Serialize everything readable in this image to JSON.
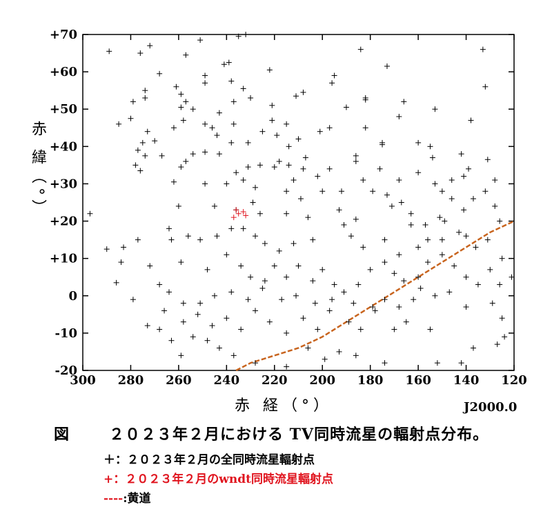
{
  "chart_data": {
    "type": "scatter",
    "xlabel": "赤 経（°）",
    "ylabel": "赤 緯（°）",
    "epoch": "J2000.0",
    "xlim": [
      300,
      120
    ],
    "ylim": [
      -20,
      70
    ],
    "x_ticks": [
      "300",
      "280",
      "260",
      "240",
      "220",
      "200",
      "180",
      "160",
      "140",
      "120"
    ],
    "y_ticks": [
      "+70",
      "+60",
      "+50",
      "+40",
      "+30",
      "+20",
      "+10",
      "0",
      "-10",
      "-20"
    ],
    "colors": {
      "all": "#000000",
      "wndt": "#e0141e",
      "ecliptic": "#c8641e"
    },
    "series": [
      {
        "name": "全同時流星輻射点",
        "marker": "+",
        "color": "#000000",
        "points": [
          [
            289,
            65.5
          ],
          [
            276,
            65
          ],
          [
            272,
            67
          ],
          [
            257,
            64.5
          ],
          [
            251,
            68.5
          ],
          [
            235,
            69.5
          ],
          [
            232,
            70
          ],
          [
            241,
            62
          ],
          [
            239,
            62.5
          ],
          [
            268,
            59.5
          ],
          [
            249,
            59
          ],
          [
            249,
            57
          ],
          [
            238,
            57.5
          ],
          [
            222,
            60.5
          ],
          [
            195,
            59
          ],
          [
            196,
            57
          ],
          [
            208,
            54.5
          ],
          [
            285,
            46
          ],
          [
            280,
            47.5
          ],
          [
            279,
            52
          ],
          [
            274,
            55
          ],
          [
            274,
            53
          ],
          [
            261,
            56
          ],
          [
            259,
            54
          ],
          [
            257,
            52
          ],
          [
            259,
            50.5
          ],
          [
            254,
            50
          ],
          [
            233,
            55.5
          ],
          [
            230,
            53
          ],
          [
            237,
            52
          ],
          [
            221,
            51
          ],
          [
            211,
            53.5
          ],
          [
            190,
            50.5
          ],
          [
            173,
            61.5
          ],
          [
            184,
            66
          ],
          [
            133,
            66
          ],
          [
            132,
            56
          ],
          [
            153,
            50
          ],
          [
            166,
            52
          ],
          [
            182,
            53
          ],
          [
            182,
            52.5
          ],
          [
            138,
            47
          ],
          [
            168,
            48
          ],
          [
            182,
            45
          ],
          [
            197,
            45
          ],
          [
            201,
            44
          ],
          [
            210,
            42
          ],
          [
            215,
            46
          ],
          [
            237,
            46
          ],
          [
            243,
            49
          ],
          [
            246,
            45
          ],
          [
            249,
            46
          ],
          [
            258,
            47
          ],
          [
            273,
            44
          ],
          [
            275,
            41
          ],
          [
            277,
            39
          ],
          [
            270,
            41.5
          ],
          [
            274,
            37.5
          ],
          [
            276,
            33.5
          ],
          [
            267,
            37.5
          ],
          [
            262,
            45
          ],
          [
            244,
            43
          ],
          [
            238,
            41
          ],
          [
            231,
            41
          ],
          [
            225,
            44
          ],
          [
            221,
            47
          ],
          [
            219,
            43
          ],
          [
            214,
            40
          ],
          [
            207,
            37
          ],
          [
            186,
            37.5
          ],
          [
            175,
            40.5
          ],
          [
            155,
            40
          ],
          [
            175,
            41
          ],
          [
            160,
            41
          ],
          [
            154,
            37
          ],
          [
            142,
            38
          ],
          [
            131,
            36.5
          ],
          [
            139,
            34
          ],
          [
            141,
            32
          ],
          [
            146,
            31
          ],
          [
            153,
            30
          ],
          [
            160,
            33
          ],
          [
            168,
            31
          ],
          [
            176,
            34
          ],
          [
            186,
            36
          ],
          [
            197,
            34
          ],
          [
            202,
            32
          ],
          [
            218,
            36
          ],
          [
            226,
            35
          ],
          [
            231,
            34.5
          ],
          [
            233,
            31
          ],
          [
            243,
            38
          ],
          [
            249,
            38.5
          ],
          [
            254,
            38
          ],
          [
            257,
            36
          ],
          [
            259,
            34.5
          ],
          [
            262,
            30.5
          ],
          [
            249,
            30
          ],
          [
            240,
            30
          ],
          [
            228,
            29
          ],
          [
            215,
            28
          ],
          [
            212,
            31
          ],
          [
            209,
            26
          ],
          [
            200,
            28
          ],
          [
            192,
            28
          ],
          [
            183,
            31
          ],
          [
            179,
            28
          ],
          [
            173,
            27
          ],
          [
            167,
            25
          ],
          [
            163,
            22
          ],
          [
            151,
            21
          ],
          [
            146,
            26
          ],
          [
            141,
            23
          ],
          [
            137,
            26
          ],
          [
            132,
            28
          ],
          [
            128,
            31
          ],
          [
            128,
            24
          ],
          [
            150,
            28
          ],
          [
            260,
            24
          ],
          [
            245,
            24
          ],
          [
            236,
            23
          ],
          [
            229,
            25
          ],
          [
            226,
            22
          ],
          [
            215,
            22
          ],
          [
            206,
            21
          ],
          [
            193,
            23
          ],
          [
            186,
            20.5
          ],
          [
            171,
            24
          ],
          [
            163,
            19
          ],
          [
            157,
            19
          ],
          [
            149,
            20
          ],
          [
            143,
            17
          ],
          [
            140,
            16
          ],
          [
            136,
            13
          ],
          [
            131,
            15
          ],
          [
            126,
            20
          ],
          [
            125,
            10
          ],
          [
            121,
            5
          ],
          [
            126,
            3
          ],
          [
            150,
            15
          ],
          [
            156,
            15
          ],
          [
            160,
            13
          ],
          [
            168,
            11
          ],
          [
            174,
            15
          ],
          [
            183,
            13
          ],
          [
            188,
            16
          ],
          [
            191,
            19
          ],
          [
            204,
            15
          ],
          [
            212,
            14
          ],
          [
            218,
            12
          ],
          [
            224,
            14
          ],
          [
            228,
            16
          ],
          [
            233,
            18
          ],
          [
            238,
            18
          ],
          [
            244,
            16
          ],
          [
            251,
            15
          ],
          [
            256,
            16
          ],
          [
            263,
            15
          ],
          [
            264,
            18
          ],
          [
            277,
            15
          ],
          [
            283,
            13
          ],
          [
            284,
            9
          ],
          [
            290,
            12.5
          ],
          [
            272,
            8
          ],
          [
            259,
            9
          ],
          [
            248,
            7
          ],
          [
            240,
            11
          ],
          [
            234,
            8
          ],
          [
            230,
            5
          ],
          [
            224,
            4
          ],
          [
            220,
            8
          ],
          [
            215,
            5
          ],
          [
            210,
            8
          ],
          [
            204,
            4
          ],
          [
            200,
            7
          ],
          [
            195,
            3
          ],
          [
            191,
            1
          ],
          [
            185,
            3
          ],
          [
            180,
            7
          ],
          [
            174,
            9
          ],
          [
            170,
            6
          ],
          [
            166,
            4
          ],
          [
            160,
            5
          ],
          [
            156,
            9
          ],
          [
            150,
            11
          ],
          [
            145,
            8
          ],
          [
            140,
            5
          ],
          [
            135,
            3
          ],
          [
            130,
            7
          ],
          [
            147,
            1
          ],
          [
            153,
            0
          ],
          [
            159,
            2
          ],
          [
            162,
            -1
          ],
          [
            168,
            -3
          ],
          [
            174,
            -1
          ],
          [
            179,
            -3
          ],
          [
            187,
            -2
          ],
          [
            196,
            -1
          ],
          [
            203,
            -2
          ],
          [
            211,
            0
          ],
          [
            217,
            -1
          ],
          [
            225,
            2
          ],
          [
            231,
            -1
          ],
          [
            238,
            1
          ],
          [
            245,
            0
          ],
          [
            251,
            -2
          ],
          [
            258,
            -2
          ],
          [
            264,
            1
          ],
          [
            268,
            3
          ],
          [
            266,
            -4
          ],
          [
            258,
            -7
          ],
          [
            252,
            -5
          ],
          [
            246,
            -8
          ],
          [
            240,
            -6
          ],
          [
            234,
            -9
          ],
          [
            228,
            -4
          ],
          [
            222,
            -7
          ],
          [
            215,
            -10
          ],
          [
            208,
            -6
          ],
          [
            202,
            -9
          ],
          [
            197,
            -4
          ],
          [
            189,
            -7
          ],
          [
            184,
            -9
          ],
          [
            178,
            -4
          ],
          [
            170,
            -9
          ],
          [
            165,
            -7
          ],
          [
            155,
            -9
          ],
          [
            140,
            -3
          ],
          [
            129,
            -2
          ],
          [
            125,
            -6
          ],
          [
            124,
            -11
          ],
          [
            127,
            -13
          ],
          [
            137,
            -14
          ],
          [
            142,
            -18
          ],
          [
            152,
            -18
          ],
          [
            174,
            -18
          ],
          [
            186,
            -16
          ],
          [
            193,
            -15
          ],
          [
            199,
            -17
          ],
          [
            206,
            -14
          ],
          [
            215,
            -19
          ],
          [
            228,
            -18
          ],
          [
            237,
            -16
          ],
          [
            243,
            -14
          ],
          [
            248,
            -12
          ],
          [
            254,
            -11
          ],
          [
            259,
            -16
          ],
          [
            263,
            -12
          ],
          [
            268,
            -9
          ],
          [
            273,
            -8
          ],
          [
            279,
            -1
          ],
          [
            297,
            22
          ],
          [
            278,
            35
          ],
          [
            286,
            3.5
          ],
          [
            220,
            34.5
          ],
          [
            236,
            33
          ],
          [
            214,
            35
          ],
          [
            208,
            34
          ]
        ]
      },
      {
        "name": "wndt同時流星輻射点",
        "marker": "+",
        "color": "#e0141e",
        "points": [
          [
            235,
            22
          ],
          [
            236,
            23
          ],
          [
            233,
            22.5
          ],
          [
            232,
            21.5
          ],
          [
            237,
            21
          ]
        ]
      },
      {
        "name": "黄道",
        "style": "dashed",
        "color": "#c8641e",
        "points": [
          [
            236,
            -20
          ],
          [
            230,
            -18
          ],
          [
            220,
            -16
          ],
          [
            210,
            -14
          ],
          [
            200,
            -11
          ],
          [
            190,
            -7
          ],
          [
            180,
            -3
          ],
          [
            170,
            1
          ],
          [
            160,
            5
          ],
          [
            150,
            9
          ],
          [
            140,
            13
          ],
          [
            130,
            17
          ],
          [
            120,
            20
          ]
        ]
      }
    ]
  },
  "caption": {
    "lead": "図",
    "text": "２０２３年２月における TV同時流星の輻射点分布。"
  },
  "legend": {
    "line1": "＋：２０２３年２月の全同時流星輻射点",
    "line2": "+：２０２３年２月のwndt同時流星輻射点",
    "line3_dash": "----",
    "line3": ":黄道"
  }
}
